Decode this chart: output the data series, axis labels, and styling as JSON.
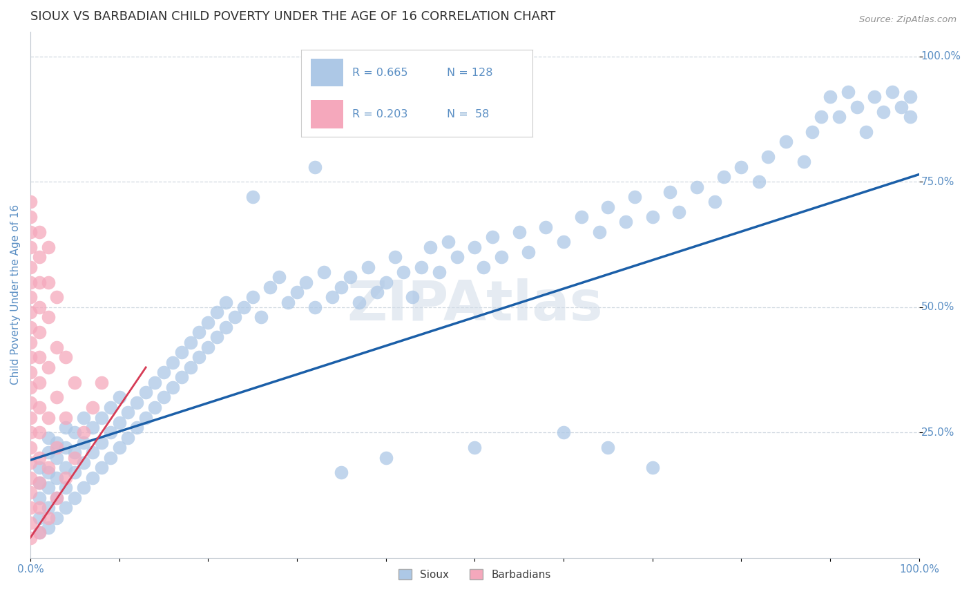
{
  "title": "SIOUX VS BARBADIAN CHILD POVERTY UNDER THE AGE OF 16 CORRELATION CHART",
  "source": "Source: ZipAtlas.com",
  "ylabel": "Child Poverty Under the Age of 16",
  "watermark": "ZIPAtlas",
  "legend_r_sioux": "0.665",
  "legend_n_sioux": "128",
  "legend_r_barb": "0.203",
  "legend_n_barb": " 58",
  "sioux_color": "#adc8e6",
  "barb_color": "#f5a8bc",
  "line_color_sioux": "#1b5fa8",
  "line_color_barb": "#d63b55",
  "title_color": "#1b5fa8",
  "axis_color": "#5b8fc4",
  "grid_color": "#d0d8e0",
  "sioux_trendline": [
    [
      0.0,
      0.195
    ],
    [
      1.0,
      0.765
    ]
  ],
  "barb_trendline": [
    [
      0.0,
      0.04
    ],
    [
      0.13,
      0.38
    ]
  ],
  "sioux_points": [
    [
      0.01,
      0.05
    ],
    [
      0.01,
      0.08
    ],
    [
      0.01,
      0.12
    ],
    [
      0.01,
      0.15
    ],
    [
      0.01,
      0.18
    ],
    [
      0.02,
      0.06
    ],
    [
      0.02,
      0.1
    ],
    [
      0.02,
      0.14
    ],
    [
      0.02,
      0.17
    ],
    [
      0.02,
      0.21
    ],
    [
      0.02,
      0.24
    ],
    [
      0.03,
      0.08
    ],
    [
      0.03,
      0.12
    ],
    [
      0.03,
      0.16
    ],
    [
      0.03,
      0.2
    ],
    [
      0.03,
      0.23
    ],
    [
      0.04,
      0.1
    ],
    [
      0.04,
      0.14
    ],
    [
      0.04,
      0.18
    ],
    [
      0.04,
      0.22
    ],
    [
      0.04,
      0.26
    ],
    [
      0.05,
      0.12
    ],
    [
      0.05,
      0.17
    ],
    [
      0.05,
      0.21
    ],
    [
      0.05,
      0.25
    ],
    [
      0.06,
      0.14
    ],
    [
      0.06,
      0.19
    ],
    [
      0.06,
      0.23
    ],
    [
      0.06,
      0.28
    ],
    [
      0.07,
      0.16
    ],
    [
      0.07,
      0.21
    ],
    [
      0.07,
      0.26
    ],
    [
      0.08,
      0.18
    ],
    [
      0.08,
      0.23
    ],
    [
      0.08,
      0.28
    ],
    [
      0.09,
      0.2
    ],
    [
      0.09,
      0.25
    ],
    [
      0.09,
      0.3
    ],
    [
      0.1,
      0.22
    ],
    [
      0.1,
      0.27
    ],
    [
      0.1,
      0.32
    ],
    [
      0.11,
      0.24
    ],
    [
      0.11,
      0.29
    ],
    [
      0.12,
      0.26
    ],
    [
      0.12,
      0.31
    ],
    [
      0.13,
      0.28
    ],
    [
      0.13,
      0.33
    ],
    [
      0.14,
      0.3
    ],
    [
      0.14,
      0.35
    ],
    [
      0.15,
      0.32
    ],
    [
      0.15,
      0.37
    ],
    [
      0.16,
      0.34
    ],
    [
      0.16,
      0.39
    ],
    [
      0.17,
      0.36
    ],
    [
      0.17,
      0.41
    ],
    [
      0.18,
      0.38
    ],
    [
      0.18,
      0.43
    ],
    [
      0.19,
      0.4
    ],
    [
      0.19,
      0.45
    ],
    [
      0.2,
      0.42
    ],
    [
      0.2,
      0.47
    ],
    [
      0.21,
      0.44
    ],
    [
      0.21,
      0.49
    ],
    [
      0.22,
      0.46
    ],
    [
      0.22,
      0.51
    ],
    [
      0.23,
      0.48
    ],
    [
      0.24,
      0.5
    ],
    [
      0.25,
      0.52
    ],
    [
      0.26,
      0.48
    ],
    [
      0.27,
      0.54
    ],
    [
      0.28,
      0.56
    ],
    [
      0.29,
      0.51
    ],
    [
      0.3,
      0.53
    ],
    [
      0.31,
      0.55
    ],
    [
      0.32,
      0.5
    ],
    [
      0.33,
      0.57
    ],
    [
      0.34,
      0.52
    ],
    [
      0.35,
      0.54
    ],
    [
      0.36,
      0.56
    ],
    [
      0.37,
      0.51
    ],
    [
      0.38,
      0.58
    ],
    [
      0.39,
      0.53
    ],
    [
      0.4,
      0.55
    ],
    [
      0.41,
      0.6
    ],
    [
      0.42,
      0.57
    ],
    [
      0.43,
      0.52
    ],
    [
      0.44,
      0.58
    ],
    [
      0.45,
      0.62
    ],
    [
      0.46,
      0.57
    ],
    [
      0.47,
      0.63
    ],
    [
      0.48,
      0.6
    ],
    [
      0.5,
      0.62
    ],
    [
      0.51,
      0.58
    ],
    [
      0.52,
      0.64
    ],
    [
      0.53,
      0.6
    ],
    [
      0.55,
      0.65
    ],
    [
      0.56,
      0.61
    ],
    [
      0.58,
      0.66
    ],
    [
      0.6,
      0.63
    ],
    [
      0.62,
      0.68
    ],
    [
      0.64,
      0.65
    ],
    [
      0.65,
      0.7
    ],
    [
      0.67,
      0.67
    ],
    [
      0.68,
      0.72
    ],
    [
      0.7,
      0.68
    ],
    [
      0.72,
      0.73
    ],
    [
      0.73,
      0.69
    ],
    [
      0.75,
      0.74
    ],
    [
      0.77,
      0.71
    ],
    [
      0.78,
      0.76
    ],
    [
      0.8,
      0.78
    ],
    [
      0.82,
      0.75
    ],
    [
      0.83,
      0.8
    ],
    [
      0.85,
      0.83
    ],
    [
      0.87,
      0.79
    ],
    [
      0.88,
      0.85
    ],
    [
      0.89,
      0.88
    ],
    [
      0.9,
      0.92
    ],
    [
      0.91,
      0.88
    ],
    [
      0.92,
      0.93
    ],
    [
      0.93,
      0.9
    ],
    [
      0.94,
      0.85
    ],
    [
      0.95,
      0.92
    ],
    [
      0.96,
      0.89
    ],
    [
      0.97,
      0.93
    ],
    [
      0.98,
      0.9
    ],
    [
      0.99,
      0.88
    ],
    [
      0.99,
      0.92
    ],
    [
      0.25,
      0.72
    ],
    [
      0.32,
      0.78
    ],
    [
      0.35,
      0.17
    ],
    [
      0.4,
      0.2
    ],
    [
      0.5,
      0.22
    ],
    [
      0.6,
      0.25
    ],
    [
      0.65,
      0.22
    ],
    [
      0.7,
      0.18
    ]
  ],
  "barb_points": [
    [
      0.0,
      0.04
    ],
    [
      0.0,
      0.07
    ],
    [
      0.0,
      0.1
    ],
    [
      0.0,
      0.13
    ],
    [
      0.0,
      0.16
    ],
    [
      0.0,
      0.19
    ],
    [
      0.0,
      0.22
    ],
    [
      0.0,
      0.25
    ],
    [
      0.0,
      0.28
    ],
    [
      0.0,
      0.31
    ],
    [
      0.0,
      0.34
    ],
    [
      0.0,
      0.37
    ],
    [
      0.0,
      0.4
    ],
    [
      0.0,
      0.43
    ],
    [
      0.0,
      0.46
    ],
    [
      0.0,
      0.49
    ],
    [
      0.0,
      0.52
    ],
    [
      0.0,
      0.55
    ],
    [
      0.0,
      0.58
    ],
    [
      0.0,
      0.62
    ],
    [
      0.0,
      0.65
    ],
    [
      0.0,
      0.68
    ],
    [
      0.0,
      0.71
    ],
    [
      0.01,
      0.05
    ],
    [
      0.01,
      0.1
    ],
    [
      0.01,
      0.15
    ],
    [
      0.01,
      0.2
    ],
    [
      0.01,
      0.25
    ],
    [
      0.01,
      0.3
    ],
    [
      0.01,
      0.35
    ],
    [
      0.01,
      0.4
    ],
    [
      0.01,
      0.45
    ],
    [
      0.01,
      0.5
    ],
    [
      0.01,
      0.55
    ],
    [
      0.01,
      0.6
    ],
    [
      0.01,
      0.65
    ],
    [
      0.02,
      0.08
    ],
    [
      0.02,
      0.18
    ],
    [
      0.02,
      0.28
    ],
    [
      0.02,
      0.38
    ],
    [
      0.02,
      0.48
    ],
    [
      0.02,
      0.55
    ],
    [
      0.02,
      0.62
    ],
    [
      0.03,
      0.12
    ],
    [
      0.03,
      0.22
    ],
    [
      0.03,
      0.32
    ],
    [
      0.03,
      0.42
    ],
    [
      0.03,
      0.52
    ],
    [
      0.04,
      0.16
    ],
    [
      0.04,
      0.28
    ],
    [
      0.04,
      0.4
    ],
    [
      0.05,
      0.2
    ],
    [
      0.05,
      0.35
    ],
    [
      0.06,
      0.25
    ],
    [
      0.07,
      0.3
    ],
    [
      0.08,
      0.35
    ]
  ]
}
